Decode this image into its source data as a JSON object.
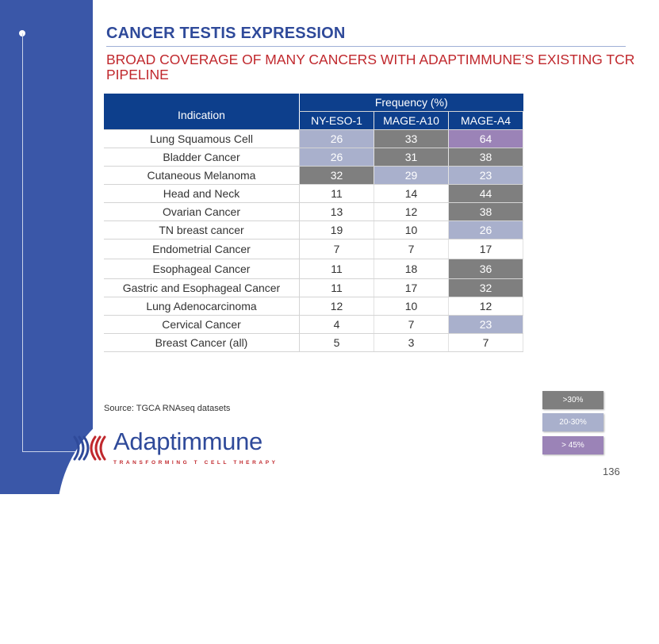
{
  "header": {
    "title": "CANCER TESTIS EXPRESSION",
    "subtitle": "BROAD COVERAGE OF MANY CANCERS WITH ADAPTIMMUNE’S EXISTING TCR PIPELINE"
  },
  "table": {
    "group_header": "Frequency (%)",
    "columns": [
      "Indication",
      "NY-ESO-1",
      "MAGE-A10",
      "MAGE-A4"
    ],
    "rows": [
      {
        "indication": "Lung Squamous Cell",
        "values": [
          "26",
          "33",
          "64"
        ]
      },
      {
        "indication": "Bladder Cancer",
        "values": [
          "26",
          "31",
          "38"
        ]
      },
      {
        "indication": "Cutaneous Melanoma",
        "values": [
          "32",
          "29",
          "23"
        ]
      },
      {
        "indication": "Head and Neck",
        "values": [
          "11",
          "14",
          "44"
        ]
      },
      {
        "indication": "Ovarian Cancer",
        "values": [
          "13",
          "12",
          "38"
        ]
      },
      {
        "indication": "TN breast cancer",
        "values": [
          "19",
          "10",
          "26"
        ]
      },
      {
        "indication": "Endometrial Cancer",
        "values": [
          "7",
          "7",
          "17"
        ]
      },
      {
        "indication": "Esophageal Cancer",
        "values": [
          "11",
          "18",
          "36"
        ]
      },
      {
        "indication": "Gastric and Esophageal Cancer",
        "values": [
          "11",
          "17",
          "32"
        ]
      },
      {
        "indication": "Lung Adenocarcinoma",
        "values": [
          "12",
          "10",
          "12"
        ]
      },
      {
        "indication": "Cervical Cancer",
        "values": [
          "4",
          "7",
          "23"
        ]
      },
      {
        "indication": "Breast Cancer (all)",
        "values": [
          "5",
          "3",
          "7"
        ]
      }
    ]
  },
  "source": "Source: TGCA RNAseq datasets",
  "legend": [
    {
      "label": ">30%",
      "color": "#7f7f7f"
    },
    {
      "label": "20-30%",
      "color": "#a9b0cc"
    },
    {
      "label": "> 45%",
      "color": "#9b83b7"
    }
  ],
  "logo": {
    "name": "Adaptimmune",
    "tagline": "TRANSFORMING T CELL THERAPY"
  },
  "page_number": "136",
  "colors": {
    "brand_blue": "#2f4a9a",
    "accent_red": "#c0282d",
    "header_navy": "#0d3f8c",
    "sidebar_blue": "#3a57a8"
  }
}
